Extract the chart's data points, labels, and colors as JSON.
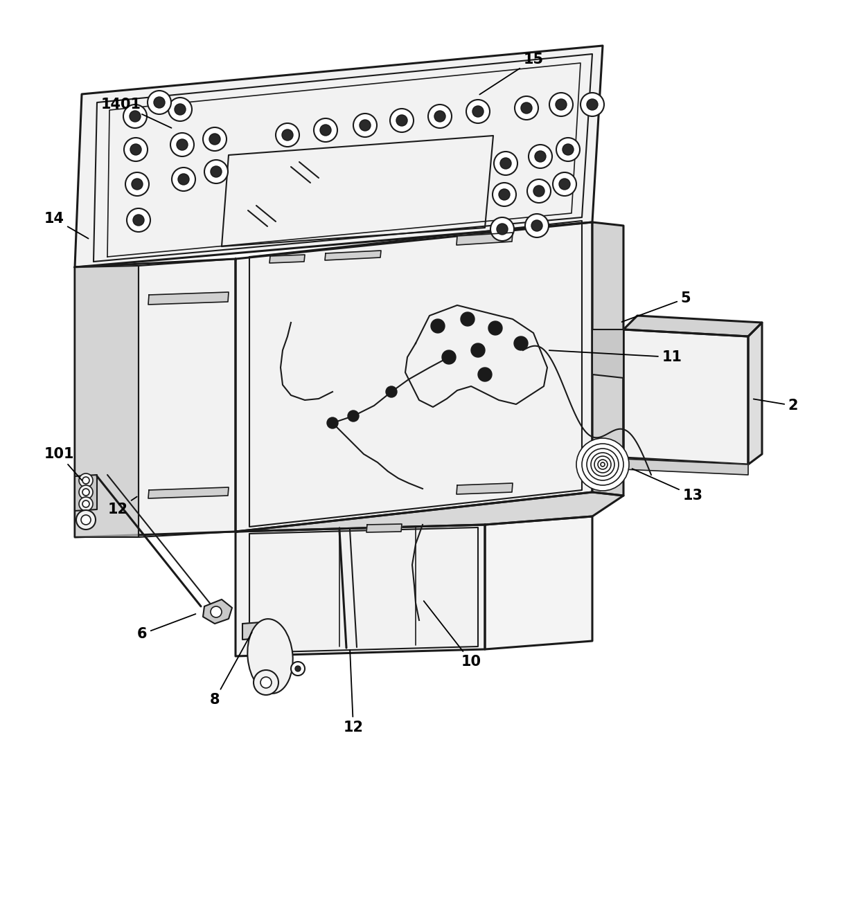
{
  "bg_color": "#ffffff",
  "line_color": "#1a1a1a",
  "gray_fill": "#e8e8e8",
  "gray_dark": "#d0d0d0",
  "gray_light": "#f2f2f2",
  "gray_mid": "#c8c8c8"
}
